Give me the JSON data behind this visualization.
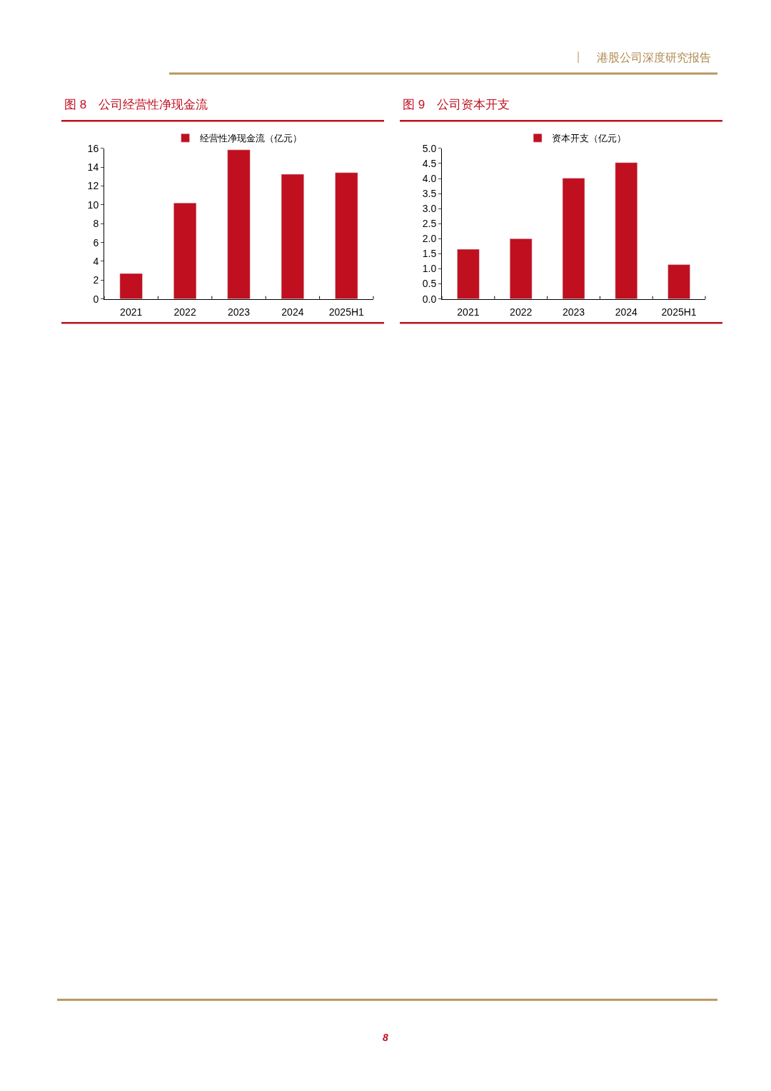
{
  "chart_data": [
    {
      "type": "bar",
      "title": "图 8　公司经营性净现金流",
      "categories": [
        "2021",
        "2022",
        "2023",
        "2024",
        "2025H1"
      ],
      "series": [
        {
          "name": "经营性净现金流（亿元）",
          "color": "#c00f1f",
          "values": [
            2.7,
            10.2,
            15.85,
            13.26,
            13.43
          ]
        }
      ],
      "ylim": [
        0,
        16
      ],
      "yticks": [
        0,
        2,
        4,
        6,
        8,
        10,
        12,
        14,
        16
      ],
      "legend": "top",
      "annotations": [
        "港股公司深度研究报告",
        "8"
      ]
    },
    {
      "type": "bar",
      "title": "图 9　公司资本开支",
      "categories": [
        "2021",
        "2022",
        "2023",
        "2024",
        "2025H1"
      ],
      "series": [
        {
          "name": "资本开支（亿元）",
          "color": "#c00f1f",
          "values": [
            1.65,
            2.0,
            4.01,
            4.53,
            1.14
          ]
        }
      ],
      "ylim": [
        0,
        5
      ],
      "yticks": [
        {
          "value": 0,
          "label": "0.0"
        },
        {
          "value": 0.5,
          "label": "0.5"
        },
        {
          "value": 1,
          "label": "1.0"
        },
        {
          "value": 1.5,
          "label": "1.5"
        },
        {
          "value": 2,
          "label": "2.0"
        },
        {
          "value": 2.5,
          "label": "2.5"
        },
        {
          "value": 3,
          "label": "3.0"
        },
        {
          "value": 3.5,
          "label": "3.5"
        },
        {
          "value": 4,
          "label": "4.0"
        },
        {
          "value": 4.5,
          "label": "4.5"
        },
        {
          "value": 5,
          "label": "5.0"
        }
      ],
      "legend": "top"
    }
  ]
}
